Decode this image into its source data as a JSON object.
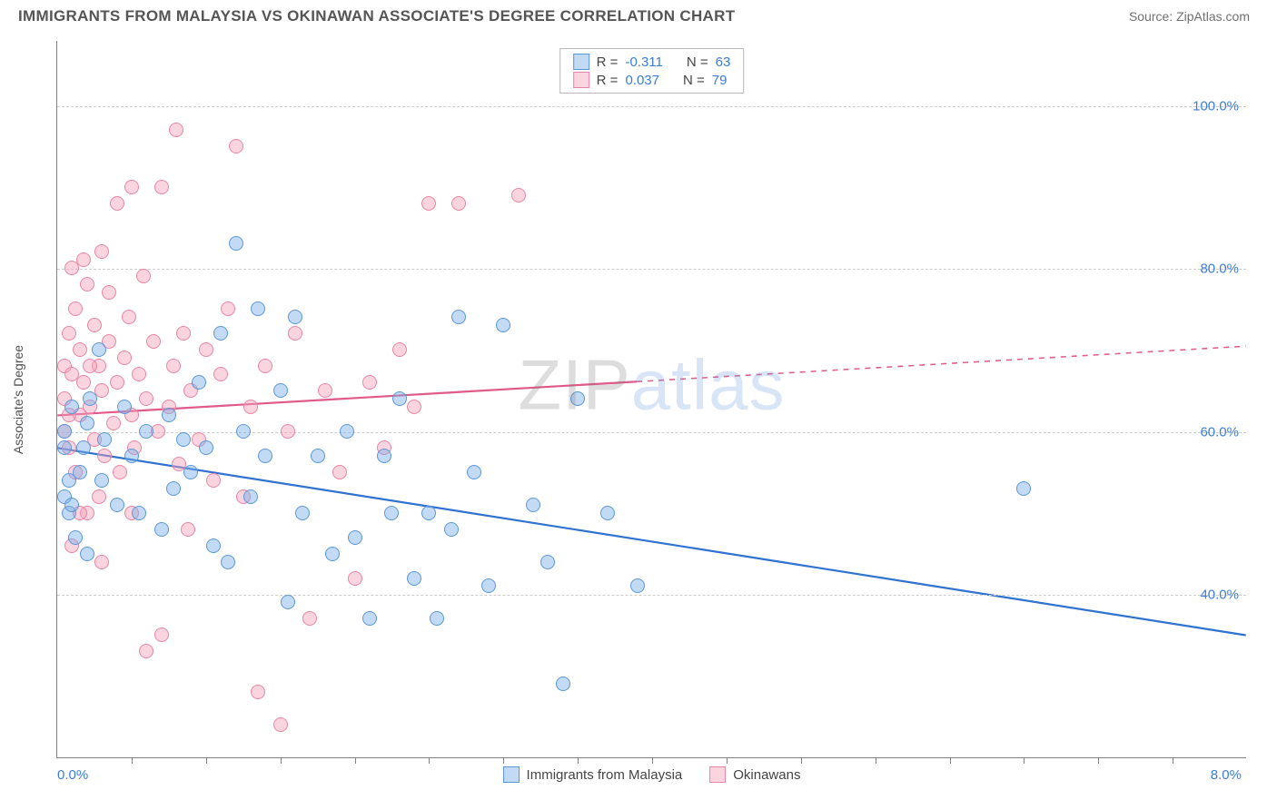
{
  "header": {
    "title": "IMMIGRANTS FROM MALAYSIA VS OKINAWAN ASSOCIATE'S DEGREE CORRELATION CHART",
    "source_prefix": "Source: ",
    "source_name": "ZipAtlas.com"
  },
  "chart": {
    "type": "scatter",
    "background_color": "#ffffff",
    "grid_color": "#cccccc",
    "axis_color": "#808080",
    "tick_label_color": "#3b7dd8",
    "y_label": "Associate's Degree",
    "x_range": [
      0.0,
      8.0
    ],
    "y_range": [
      20.0,
      108.0
    ],
    "x_start_label": "0.0%",
    "x_end_label": "8.0%",
    "x_tick_positions": [
      0.5,
      1.0,
      1.5,
      2.0,
      2.5,
      3.0,
      3.5,
      4.0,
      4.5,
      5.0,
      5.5,
      6.0,
      6.5,
      7.0,
      7.5
    ],
    "y_gridlines": [
      {
        "value": 40.0,
        "label": "40.0%"
      },
      {
        "value": 60.0,
        "label": "60.0%"
      },
      {
        "value": 80.0,
        "label": "80.0%"
      },
      {
        "value": 100.0,
        "label": "100.0%"
      }
    ],
    "watermark": {
      "part1": "ZIP",
      "part2": "atlas"
    },
    "series": [
      {
        "key": "malaysia",
        "label": "Immigrants from Malaysia",
        "fill": "rgba(122,172,230,0.45)",
        "stroke": "#5b98d6",
        "R": "-0.311",
        "N": "63",
        "trend": {
          "y_at_x0": 58.0,
          "y_at_xmax": 35.0,
          "solid_until_x": 8.0,
          "color": "#2f72d0",
          "width": 2.2
        },
        "marker_radius": 8,
        "points": [
          [
            0.05,
            52
          ],
          [
            0.05,
            58
          ],
          [
            0.05,
            60
          ],
          [
            0.08,
            50
          ],
          [
            0.08,
            54
          ],
          [
            0.1,
            63
          ],
          [
            0.1,
            51
          ],
          [
            0.12,
            47
          ],
          [
            0.15,
            55
          ],
          [
            0.18,
            58
          ],
          [
            0.2,
            61
          ],
          [
            0.2,
            45
          ],
          [
            0.22,
            64
          ],
          [
            0.28,
            70
          ],
          [
            0.3,
            54
          ],
          [
            0.32,
            59
          ],
          [
            0.4,
            51
          ],
          [
            0.45,
            63
          ],
          [
            0.5,
            57
          ],
          [
            0.55,
            50
          ],
          [
            0.6,
            60
          ],
          [
            0.7,
            48
          ],
          [
            0.75,
            62
          ],
          [
            0.78,
            53
          ],
          [
            0.85,
            59
          ],
          [
            0.9,
            55
          ],
          [
            0.95,
            66
          ],
          [
            1.0,
            58
          ],
          [
            1.05,
            46
          ],
          [
            1.1,
            72
          ],
          [
            1.15,
            44
          ],
          [
            1.2,
            83
          ],
          [
            1.25,
            60
          ],
          [
            1.3,
            52
          ],
          [
            1.35,
            75
          ],
          [
            1.4,
            57
          ],
          [
            1.5,
            65
          ],
          [
            1.55,
            39
          ],
          [
            1.6,
            74
          ],
          [
            1.65,
            50
          ],
          [
            1.75,
            57
          ],
          [
            1.85,
            45
          ],
          [
            1.95,
            60
          ],
          [
            2.0,
            47
          ],
          [
            2.1,
            37
          ],
          [
            2.2,
            57
          ],
          [
            2.25,
            50
          ],
          [
            2.3,
            64
          ],
          [
            2.4,
            42
          ],
          [
            2.5,
            50
          ],
          [
            2.55,
            37
          ],
          [
            2.65,
            48
          ],
          [
            2.7,
            74
          ],
          [
            2.8,
            55
          ],
          [
            2.9,
            41
          ],
          [
            3.0,
            73
          ],
          [
            3.2,
            51
          ],
          [
            3.3,
            44
          ],
          [
            3.4,
            29
          ],
          [
            3.5,
            64
          ],
          [
            3.7,
            50
          ],
          [
            3.9,
            41
          ],
          [
            6.5,
            53
          ]
        ]
      },
      {
        "key": "okinawans",
        "label": "Okinawans",
        "fill": "rgba(244,160,185,0.45)",
        "stroke": "#e985a6",
        "R": "0.037",
        "N": "79",
        "trend": {
          "y_at_x0": 62.0,
          "y_at_xmax": 70.5,
          "solid_until_x": 3.9,
          "color": "#e05a8a",
          "width": 2.2
        },
        "marker_radius": 8,
        "points": [
          [
            0.05,
            60
          ],
          [
            0.05,
            64
          ],
          [
            0.05,
            68
          ],
          [
            0.08,
            58
          ],
          [
            0.08,
            72
          ],
          [
            0.1,
            67
          ],
          [
            0.1,
            80
          ],
          [
            0.12,
            55
          ],
          [
            0.12,
            75
          ],
          [
            0.15,
            62
          ],
          [
            0.15,
            70
          ],
          [
            0.18,
            66
          ],
          [
            0.18,
            81
          ],
          [
            0.2,
            50
          ],
          [
            0.2,
            78
          ],
          [
            0.22,
            63
          ],
          [
            0.25,
            59
          ],
          [
            0.25,
            73
          ],
          [
            0.28,
            52
          ],
          [
            0.28,
            68
          ],
          [
            0.3,
            65
          ],
          [
            0.3,
            82
          ],
          [
            0.32,
            57
          ],
          [
            0.35,
            71
          ],
          [
            0.35,
            77
          ],
          [
            0.38,
            61
          ],
          [
            0.4,
            66
          ],
          [
            0.4,
            88
          ],
          [
            0.42,
            55
          ],
          [
            0.45,
            69
          ],
          [
            0.48,
            74
          ],
          [
            0.5,
            62
          ],
          [
            0.5,
            90
          ],
          [
            0.52,
            58
          ],
          [
            0.55,
            67
          ],
          [
            0.58,
            79
          ],
          [
            0.6,
            64
          ],
          [
            0.6,
            33
          ],
          [
            0.65,
            71
          ],
          [
            0.68,
            60
          ],
          [
            0.7,
            90
          ],
          [
            0.7,
            35
          ],
          [
            0.75,
            63
          ],
          [
            0.78,
            68
          ],
          [
            0.8,
            97
          ],
          [
            0.82,
            56
          ],
          [
            0.85,
            72
          ],
          [
            0.88,
            48
          ],
          [
            0.9,
            65
          ],
          [
            0.95,
            59
          ],
          [
            1.0,
            70
          ],
          [
            1.05,
            54
          ],
          [
            1.1,
            67
          ],
          [
            1.15,
            75
          ],
          [
            1.2,
            95
          ],
          [
            1.25,
            52
          ],
          [
            1.3,
            63
          ],
          [
            1.35,
            28
          ],
          [
            1.4,
            68
          ],
          [
            1.5,
            24
          ],
          [
            1.55,
            60
          ],
          [
            1.6,
            72
          ],
          [
            1.7,
            37
          ],
          [
            1.8,
            65
          ],
          [
            1.9,
            55
          ],
          [
            2.0,
            42
          ],
          [
            2.1,
            66
          ],
          [
            2.2,
            58
          ],
          [
            2.3,
            70
          ],
          [
            2.4,
            63
          ],
          [
            2.5,
            88
          ],
          [
            2.7,
            88
          ],
          [
            3.1,
            89
          ],
          [
            0.1,
            46
          ],
          [
            0.3,
            44
          ],
          [
            0.15,
            50
          ],
          [
            0.08,
            62
          ],
          [
            0.22,
            68
          ],
          [
            0.5,
            50
          ]
        ]
      }
    ],
    "legend_top": {
      "R_label": "R = ",
      "N_label": "N = "
    }
  }
}
